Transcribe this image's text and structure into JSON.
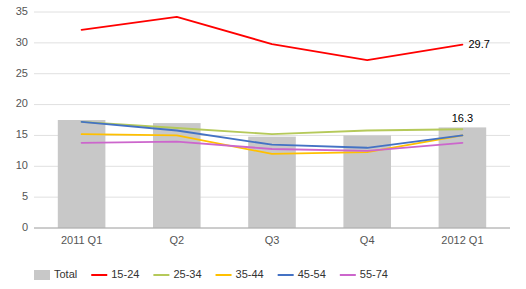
{
  "chart_data": {
    "type": "bar",
    "categories": [
      "2011 Q1",
      "Q2",
      "Q3",
      "Q4",
      "2012 Q1"
    ],
    "series": [
      {
        "name": "Total",
        "type": "bar",
        "color": "#c8c8c8",
        "values": [
          17.5,
          17.0,
          14.8,
          15.0,
          16.3
        ]
      },
      {
        "name": "15-24",
        "type": "line",
        "color": "#ff0000",
        "values": [
          32.1,
          34.2,
          29.8,
          27.2,
          29.7
        ]
      },
      {
        "name": "25-34",
        "type": "line",
        "color": "#b5c95a",
        "values": [
          17.2,
          16.2,
          15.2,
          15.8,
          16.0
        ]
      },
      {
        "name": "35-44",
        "type": "line",
        "color": "#ffc000",
        "values": [
          15.2,
          15.0,
          12.0,
          12.3,
          15.0
        ]
      },
      {
        "name": "45-54",
        "type": "line",
        "color": "#4472c4",
        "values": [
          17.2,
          15.8,
          13.5,
          13.0,
          15.0
        ]
      },
      {
        "name": "55-74",
        "type": "line",
        "color": "#cc66cc",
        "values": [
          13.8,
          14.0,
          12.8,
          12.5,
          13.8
        ]
      }
    ],
    "annotations": [
      {
        "text": "29.7",
        "x": "2012 Q1",
        "y": 29.7,
        "series": "15-24"
      },
      {
        "text": "16.3",
        "x": "2012 Q1",
        "y": 16.3,
        "series": "Total"
      }
    ],
    "ylim": [
      0,
      35
    ],
    "yticks": [
      0,
      5,
      10,
      15,
      20,
      25,
      30,
      35
    ],
    "grid": true,
    "legend": "bottom"
  }
}
